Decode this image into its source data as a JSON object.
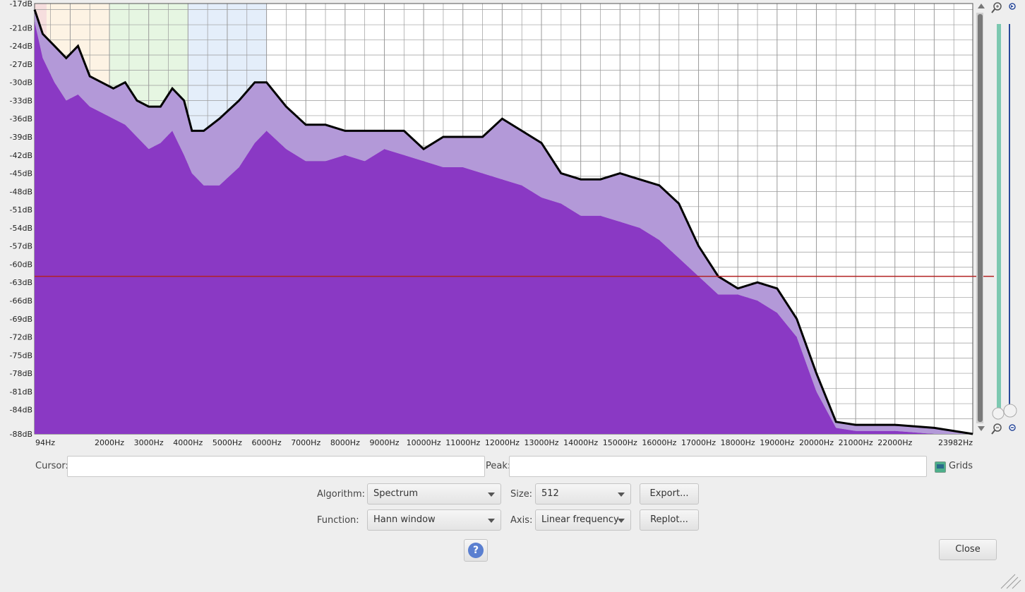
{
  "spectrum": {
    "db_ticks": [
      "-17dB",
      "-21dB",
      "-24dB",
      "-27dB",
      "-30dB",
      "-33dB",
      "-36dB",
      "-39dB",
      "-42dB",
      "-45dB",
      "-48dB",
      "-51dB",
      "-54dB",
      "-57dB",
      "-60dB",
      "-63dB",
      "-66dB",
      "-69dB",
      "-72dB",
      "-75dB",
      "-78dB",
      "-81dB",
      "-84dB",
      "-88dB"
    ],
    "hz_ticks": [
      "94Hz",
      "2000Hz",
      "3000Hz",
      "4000Hz",
      "5000Hz",
      "6000Hz",
      "7000Hz",
      "8000Hz",
      "9000Hz",
      "10000Hz",
      "11000Hz",
      "12000Hz",
      "13000Hz",
      "14000Hz",
      "15000Hz",
      "16000Hz",
      "17000Hz",
      "18000Hz",
      "19000Hz",
      "20000Hz",
      "21000Hz",
      "22000Hz",
      "23982Hz"
    ],
    "x_range_hz": [
      94,
      23982
    ],
    "y_range_db": [
      -88,
      -17
    ],
    "cursor_db": -62,
    "curve_peak_db": [
      [
        94,
        -18
      ],
      [
        300,
        -22
      ],
      [
        600,
        -24
      ],
      [
        900,
        -26
      ],
      [
        1200,
        -24
      ],
      [
        1500,
        -29
      ],
      [
        1800,
        -30
      ],
      [
        2100,
        -31
      ],
      [
        2400,
        -30
      ],
      [
        2700,
        -33
      ],
      [
        3000,
        -34
      ],
      [
        3300,
        -34
      ],
      [
        3600,
        -31
      ],
      [
        3900,
        -33
      ],
      [
        4100,
        -38
      ],
      [
        4400,
        -38
      ],
      [
        4800,
        -36
      ],
      [
        5300,
        -33
      ],
      [
        5700,
        -30
      ],
      [
        6000,
        -30
      ],
      [
        6500,
        -34
      ],
      [
        7000,
        -37
      ],
      [
        7500,
        -37
      ],
      [
        8000,
        -38
      ],
      [
        8500,
        -38
      ],
      [
        9000,
        -38
      ],
      [
        9500,
        -38
      ],
      [
        10000,
        -41
      ],
      [
        10500,
        -39
      ],
      [
        11000,
        -39
      ],
      [
        11500,
        -39
      ],
      [
        12000,
        -36
      ],
      [
        12500,
        -38
      ],
      [
        13000,
        -40
      ],
      [
        13500,
        -45
      ],
      [
        14000,
        -46
      ],
      [
        14500,
        -46
      ],
      [
        15000,
        -45
      ],
      [
        15500,
        -46
      ],
      [
        16000,
        -47
      ],
      [
        16500,
        -50
      ],
      [
        17000,
        -57
      ],
      [
        17500,
        -62
      ],
      [
        18000,
        -64
      ],
      [
        18500,
        -63
      ],
      [
        19000,
        -64
      ],
      [
        19500,
        -69
      ],
      [
        20000,
        -78
      ],
      [
        20500,
        -86
      ],
      [
        21000,
        -86.5
      ],
      [
        22000,
        -86.5
      ],
      [
        23000,
        -87
      ],
      [
        23982,
        -88
      ]
    ],
    "curve_low_db": [
      [
        94,
        -20
      ],
      [
        300,
        -26
      ],
      [
        600,
        -30
      ],
      [
        900,
        -33
      ],
      [
        1200,
        -32
      ],
      [
        1500,
        -34
      ],
      [
        1800,
        -35
      ],
      [
        2100,
        -36
      ],
      [
        2400,
        -37
      ],
      [
        2700,
        -39
      ],
      [
        3000,
        -41
      ],
      [
        3300,
        -40
      ],
      [
        3600,
        -38
      ],
      [
        3900,
        -42
      ],
      [
        4100,
        -45
      ],
      [
        4400,
        -47
      ],
      [
        4800,
        -47
      ],
      [
        5300,
        -44
      ],
      [
        5700,
        -40
      ],
      [
        6000,
        -38
      ],
      [
        6500,
        -41
      ],
      [
        7000,
        -43
      ],
      [
        7500,
        -43
      ],
      [
        8000,
        -42
      ],
      [
        8500,
        -43
      ],
      [
        9000,
        -41
      ],
      [
        9500,
        -42
      ],
      [
        10000,
        -43
      ],
      [
        10500,
        -44
      ],
      [
        11000,
        -44
      ],
      [
        11500,
        -45
      ],
      [
        12000,
        -46
      ],
      [
        12500,
        -47
      ],
      [
        13000,
        -49
      ],
      [
        13500,
        -50
      ],
      [
        14000,
        -52
      ],
      [
        14500,
        -52
      ],
      [
        15000,
        -53
      ],
      [
        15500,
        -54
      ],
      [
        16000,
        -56
      ],
      [
        16500,
        -59
      ],
      [
        17000,
        -62
      ],
      [
        17500,
        -65
      ],
      [
        18000,
        -65
      ],
      [
        18500,
        -66
      ],
      [
        19000,
        -68
      ],
      [
        19500,
        -72
      ],
      [
        20000,
        -81
      ],
      [
        20500,
        -87
      ],
      [
        21000,
        -87.5
      ],
      [
        22000,
        -87.5
      ],
      [
        23000,
        -88
      ],
      [
        23982,
        -88
      ]
    ],
    "colors": {
      "fill": "#8a39c4",
      "band": "#b399d8",
      "line": "#000000",
      "cursor": "#b22222",
      "grid": "#9a9a9a"
    }
  },
  "labels": {
    "cursor": "Cursor:",
    "peak": "Peak:",
    "grids": "Grids",
    "algorithm": "Algorithm:",
    "function": "Function:",
    "size": "Size:",
    "axis": "Axis:"
  },
  "values": {
    "cursor": "",
    "peak": "",
    "algorithm": "Spectrum",
    "function": "Hann window",
    "size": "512",
    "axis": "Linear frequency"
  },
  "buttons": {
    "export": "Export...",
    "replot": "Replot...",
    "close": "Close",
    "help": "?"
  },
  "zoom_slider": {
    "level": 0.05
  }
}
